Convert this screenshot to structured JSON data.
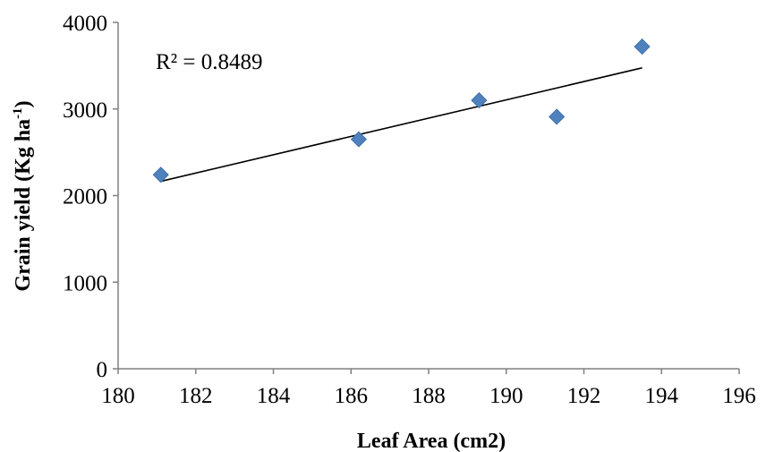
{
  "chart_data": {
    "type": "scatter",
    "x": [
      181.1,
      186.2,
      189.3,
      191.3,
      193.5
    ],
    "y": [
      2240,
      2650,
      3100,
      2910,
      3720
    ],
    "xlabel": "Leaf Area (cm2)",
    "ylabel": "Grain yield (Kg ha",
    "ylabel_sup": "-1",
    "ylabel_end": ")",
    "xlim": [
      180,
      196
    ],
    "ylim": [
      0,
      4000
    ],
    "xticks": [
      180,
      182,
      184,
      186,
      188,
      190,
      192,
      194,
      196
    ],
    "yticks": [
      0,
      1000,
      2000,
      3000,
      4000
    ],
    "trendline": {
      "x": [
        181.1,
        193.5
      ],
      "y": [
        2165,
        3475
      ]
    },
    "annotation": "R² = 0.8489",
    "grid": false,
    "marker": "diamond",
    "marker_color": "#4F81BD"
  }
}
